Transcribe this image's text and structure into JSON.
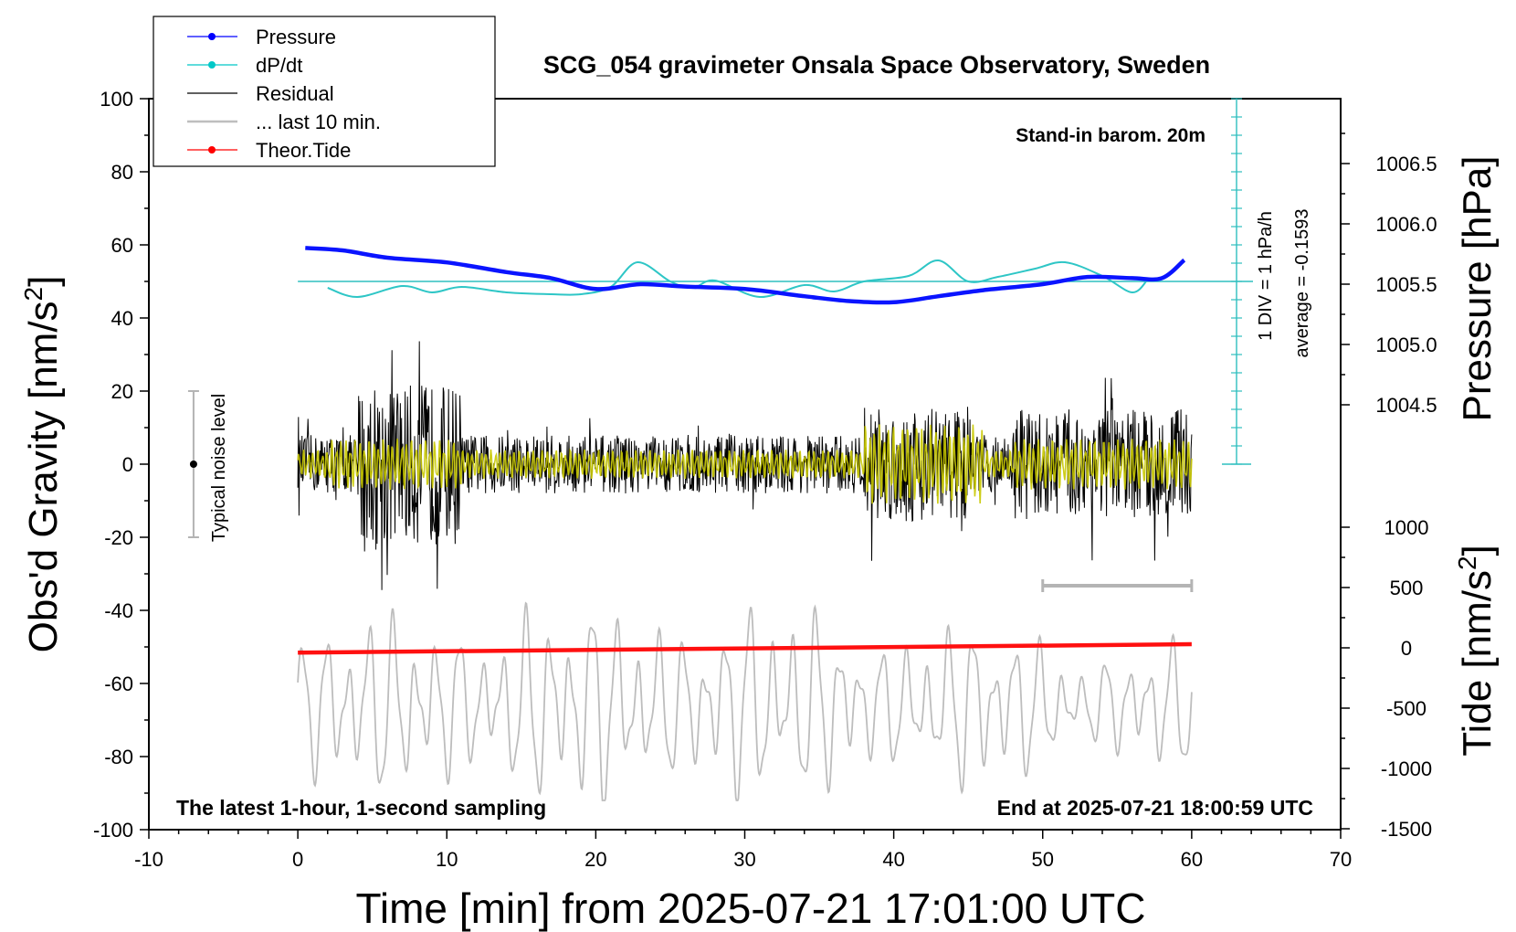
{
  "chart_data": {
    "type": "line",
    "title": "SCG_054 gravimeter Onsala Space Observatory, Sweden",
    "xlabel": "Time [min] from 2025-07-21 17:01:00 UTC",
    "ylabel_left": "Obs'd Gravity [nm/s",
    "ylabel_left_sup": "2",
    "ylabel_left_close": "]",
    "ylabel_right_top": "Pressure [hPa]",
    "ylabel_right_bottom": "Tide [nm/s",
    "ylabel_right_bottom_sup": "2",
    "ylabel_right_bottom_close": "]",
    "xlim": [
      -10,
      70
    ],
    "ylim": [
      -100,
      100
    ],
    "x_ticks": [
      "-10",
      "0",
      "10",
      "20",
      "30",
      "40",
      "50",
      "60",
      "70"
    ],
    "y_ticks": [
      "100",
      "80",
      "60",
      "40",
      "20",
      "0",
      "-20",
      "-40",
      "-60",
      "-80",
      "-100"
    ],
    "pressure_ticks": [
      "1006.5",
      "1006.0",
      "1005.5",
      "1005.0",
      "1004.5"
    ],
    "tide_ticks": [
      "1000",
      "500",
      "0",
      "-500",
      "-1000",
      "-1500"
    ],
    "legend": [
      {
        "label": "Pressure",
        "color": "#0000ff",
        "marker": true
      },
      {
        "label": "dP/dt",
        "color": "#00c8c8",
        "marker": true
      },
      {
        "label": "Residual",
        "color": "#000000",
        "marker": false
      },
      {
        "label": "... last 10 min.",
        "color": "#bebebe",
        "marker": false
      },
      {
        "label": "Theor.Tide",
        "color": "#ff0000",
        "marker": true
      }
    ],
    "annotations": {
      "barom": "Stand-in barom. 20m",
      "div_label": "1 DIV = 1 hPa/h",
      "average_label": "average = -0.1593",
      "noise_label": "Typical noise level",
      "bottom_left": "The latest 1-hour, 1-second sampling",
      "bottom_right": "End at 2025-07-21 18:00:59 UTC"
    },
    "series": [
      {
        "name": "Pressure",
        "unit": "hPa",
        "color": "#0000ff",
        "x": [
          0.5,
          3,
          6,
          10,
          14,
          17,
          20,
          23,
          26,
          30,
          34,
          37,
          40,
          43,
          46,
          50,
          53,
          56,
          58,
          59.5
        ],
        "values": [
          1005.8,
          1005.78,
          1005.72,
          1005.68,
          1005.6,
          1005.55,
          1005.46,
          1005.5,
          1005.48,
          1005.46,
          1005.4,
          1005.36,
          1005.35,
          1005.4,
          1005.45,
          1005.5,
          1005.56,
          1005.55,
          1005.55,
          1005.7
        ]
      },
      {
        "name": "dP/dt",
        "unit": "hPa/h",
        "color": "#00c8c8",
        "x": [
          2,
          4,
          7,
          9,
          11,
          14,
          17,
          19,
          21,
          22.8,
          25,
          26.5,
          28,
          31,
          34,
          36,
          38,
          41,
          43,
          45,
          47,
          49.5,
          51.5,
          54,
          56,
          57
        ],
        "values": [
          -0.35,
          -0.85,
          -0.25,
          -0.6,
          -0.3,
          -0.6,
          -0.7,
          -0.7,
          -0.3,
          1.05,
          0.0,
          -0.35,
          0.05,
          -0.85,
          -0.2,
          -0.55,
          0.0,
          0.3,
          1.15,
          0.0,
          0.25,
          0.7,
          1.05,
          0.3,
          -0.6,
          0.05
        ]
      },
      {
        "name": "Theor.Tide",
        "unit": "nm/s2",
        "color": "#ff0000",
        "x": [
          0,
          60
        ],
        "values": [
          -40,
          30
        ]
      }
    ],
    "residual": {
      "x_range": [
        0,
        60
      ],
      "envelope_nm_s2": [
        0,
        40
      ]
    },
    "last_10_min": {
      "x_range": [
        50,
        60
      ]
    },
    "dpdt_average": -0.1593
  }
}
